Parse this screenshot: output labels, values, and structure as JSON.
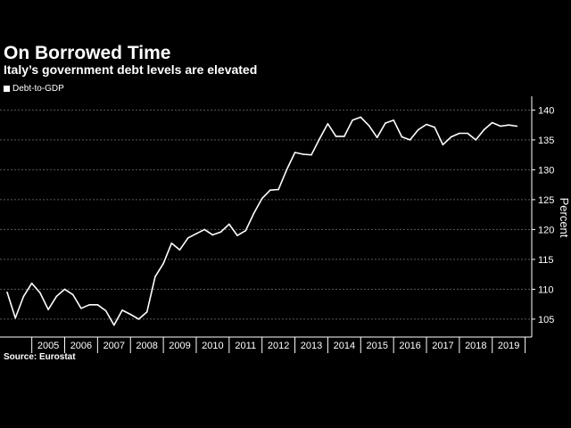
{
  "header": {
    "title": "On Borrowed Time",
    "subtitle": "Italy’s government debt levels are elevated"
  },
  "legend": {
    "label": "Debt-to-GDP"
  },
  "footer": {
    "source": "Source: Eurostat"
  },
  "colors": {
    "background": "#000000",
    "line": "#ffffff",
    "grid": "#5a5a5a",
    "text": "#ffffff"
  },
  "chart_data": {
    "type": "line",
    "title": "On Borrowed Time",
    "subtitle": "Italy’s government debt levels are elevated",
    "ylabel": "Percent",
    "ylim": [
      102,
      142
    ],
    "y_ticks": [
      105,
      110,
      115,
      120,
      125,
      130,
      135,
      140
    ],
    "y_axis_position": "right",
    "x_ticks": [
      "2005",
      "2006",
      "2007",
      "2008",
      "2009",
      "2010",
      "2011",
      "2012",
      "2013",
      "2014",
      "2015",
      "2016",
      "2017",
      "2018",
      "2019"
    ],
    "x_range": [
      2004.25,
      2019.875
    ],
    "grid": "horizontal dotted",
    "legend_position": "top-left",
    "series": [
      {
        "name": "Debt-to-GDP",
        "x": [
          2004.25,
          2004.5,
          2004.75,
          2005.0,
          2005.25,
          2005.5,
          2005.75,
          2006.0,
          2006.25,
          2006.5,
          2006.75,
          2007.0,
          2007.25,
          2007.5,
          2007.75,
          2008.0,
          2008.25,
          2008.5,
          2008.75,
          2009.0,
          2009.25,
          2009.5,
          2009.75,
          2010.0,
          2010.25,
          2010.5,
          2010.75,
          2011.0,
          2011.25,
          2011.5,
          2011.75,
          2012.0,
          2012.25,
          2012.5,
          2012.75,
          2013.0,
          2013.25,
          2013.5,
          2013.75,
          2014.0,
          2014.25,
          2014.5,
          2014.75,
          2015.0,
          2015.25,
          2015.5,
          2015.75,
          2016.0,
          2016.25,
          2016.5,
          2016.75,
          2017.0,
          2017.25,
          2017.5,
          2017.75,
          2018.0,
          2018.25,
          2018.5,
          2018.75,
          2019.0,
          2019.25,
          2019.5,
          2019.75
        ],
        "values": [
          109.5,
          105.2,
          108.8,
          111.0,
          109.4,
          106.6,
          108.8,
          110.0,
          109.1,
          106.8,
          107.4,
          107.4,
          106.4,
          104.0,
          106.5,
          105.8,
          105.0,
          106.2,
          112.1,
          114.3,
          117.7,
          116.6,
          118.6,
          119.3,
          120.0,
          119.1,
          119.6,
          120.9,
          119.0,
          119.8,
          122.7,
          125.2,
          126.6,
          126.7,
          130.0,
          132.9,
          132.6,
          132.5,
          135.2,
          137.7,
          135.6,
          135.6,
          138.3,
          138.8,
          137.4,
          135.4,
          137.8,
          138.3,
          135.5,
          135.0,
          136.7,
          137.6,
          137.1,
          134.2,
          135.5,
          136.1,
          136.1,
          135.0,
          136.7,
          137.9,
          137.3,
          137.5,
          137.3
        ]
      }
    ]
  }
}
